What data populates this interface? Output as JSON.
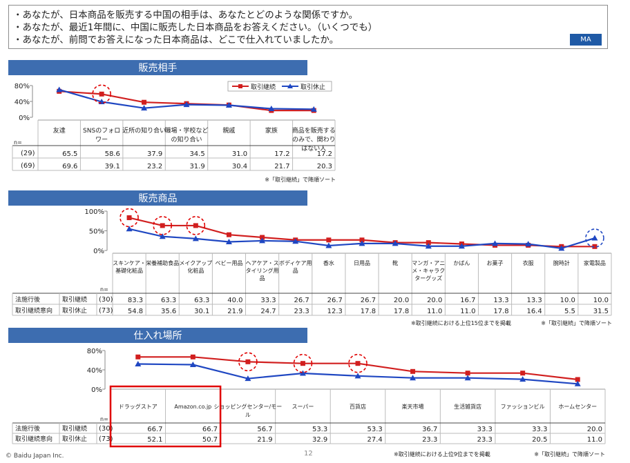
{
  "questions": [
    "・あなたが、日本商品を販売する中国の相手は、あなたとどのような関係ですか。",
    "・あなたが、最近1年間に、中国に販売した日本商品をお答えください。（いくつでも）",
    "・あなたが、前問でお答えになった日本商品は、どこで仕入れていましたか。"
  ],
  "badge": "MA",
  "colors": {
    "red": "#d11f1f",
    "blue": "#1f47c2",
    "band": "#3d6db0",
    "highlight": "#e00000"
  },
  "sections": {
    "partner": {
      "title": "販売相手",
      "legend": [
        "取引継続",
        "取引休止"
      ],
      "row_labels": [
        "(29)",
        "(69)"
      ],
      "n_label": "n=",
      "note": "※「取引継続」で降順ソート"
    },
    "products": {
      "title": "販売商品",
      "n_label": "n=",
      "group_labels": [
        "法施行後",
        "取引継続意向"
      ],
      "series_labels": [
        "取引継続",
        "取引休止"
      ],
      "n_values": [
        "(30)",
        "(73)"
      ],
      "note1": "※取引継続における上位15位までを掲載",
      "note2": "※「取引継続」で降順ソート"
    },
    "purchase": {
      "title": "仕入れ場所",
      "n_label": "n=",
      "group_labels": [
        "法施行後",
        "取引継続意向"
      ],
      "series_labels": [
        "取引継続",
        "取引休止"
      ],
      "n_values": [
        "(30)",
        "(73)"
      ],
      "note1": "※取引継続における上位9位までを掲載",
      "note2": "※「取引継続」で降順ソート"
    }
  },
  "chart_data": [
    {
      "type": "line",
      "title": "販売相手",
      "categories": [
        "友達",
        "SNSのフォロワー",
        "近所の知り合い",
        "職場・学校などの知り合い",
        "親戚",
        "家族",
        "商品を販売するのみで、関わりはない人"
      ],
      "series": [
        {
          "name": "取引継続",
          "values": [
            65.5,
            58.6,
            37.9,
            34.5,
            31.0,
            17.2,
            17.2
          ]
        },
        {
          "name": "取引休止",
          "values": [
            69.6,
            39.1,
            23.2,
            31.9,
            30.4,
            21.7,
            20.3
          ]
        }
      ],
      "ylim": [
        0,
        80
      ],
      "yticks": [
        "80%",
        "40%",
        "0%"
      ],
      "legend": "top-right"
    },
    {
      "type": "line",
      "title": "販売商品",
      "categories": [
        "スキンケア・基礎化粧品",
        "栄養補助食品",
        "メイクアップ化粧品",
        "ベビー用品",
        "ヘアケア・スタイリング用品",
        "ボディケア用品",
        "香水",
        "日用品",
        "靴",
        "マンガ・アニメ・キャラクターグッズ",
        "かばん",
        "お菓子",
        "衣服",
        "腕時計",
        "家電製品"
      ],
      "series": [
        {
          "name": "取引継続",
          "values": [
            83.3,
            63.3,
            63.3,
            40.0,
            33.3,
            26.7,
            26.7,
            26.7,
            20.0,
            20.0,
            16.7,
            13.3,
            13.3,
            10.0,
            10.0
          ]
        },
        {
          "name": "取引休止",
          "values": [
            54.8,
            35.6,
            30.1,
            21.9,
            24.7,
            23.3,
            12.3,
            17.8,
            17.8,
            11.0,
            11.0,
            17.8,
            16.4,
            5.5,
            31.5
          ]
        }
      ],
      "ylim": [
        0,
        100
      ],
      "yticks": [
        "100%",
        "50%",
        "0%"
      ]
    },
    {
      "type": "line",
      "title": "仕入れ場所",
      "categories": [
        "ドラッグストア",
        "Amazon.co.jp",
        "ショッピングセンター/モール",
        "スーパー",
        "百貨店",
        "楽天市場",
        "生活雑貨店",
        "ファッションビル",
        "ホームセンター"
      ],
      "series": [
        {
          "name": "取引継続",
          "values": [
            66.7,
            66.7,
            56.7,
            53.3,
            53.3,
            36.7,
            33.3,
            33.3,
            20.0
          ]
        },
        {
          "name": "取引休止",
          "values": [
            52.1,
            50.7,
            21.9,
            32.9,
            27.4,
            23.3,
            23.3,
            20.5,
            11.0
          ]
        }
      ],
      "ylim": [
        0,
        80
      ],
      "yticks": [
        "80%",
        "40%",
        "0%"
      ]
    }
  ],
  "footer": {
    "copyright": "© Baidu Japan Inc.",
    "page": "12"
  }
}
